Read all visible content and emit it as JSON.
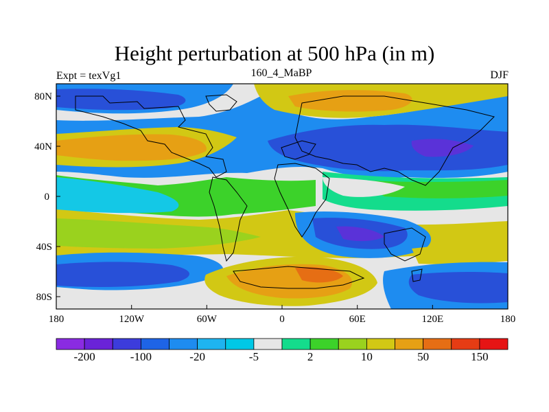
{
  "title": "Height perturbation at 500 hPa (in m)",
  "left_label": "Expt = texVg1",
  "center_label": "160_4_MaBP",
  "right_label": "DJF",
  "lat_ticks": [
    "80N",
    "40N",
    "0",
    "40S",
    "80S"
  ],
  "lon_ticks": [
    "180",
    "120W",
    "60W",
    "0",
    "60E",
    "120E",
    "180"
  ],
  "colorbar": {
    "colors": [
      "#8a2be2",
      "#6a23d8",
      "#3c3cdc",
      "#1e64e6",
      "#1e8cf0",
      "#1eb4f0",
      "#00c8e6",
      "#e6e6e6",
      "#14dc8c",
      "#3cd22a",
      "#9ad21e",
      "#d2c814",
      "#e6a014",
      "#e66e14",
      "#e63c14",
      "#e61414"
    ],
    "labels": [
      "-200",
      "-100",
      "-20",
      "-5",
      "2",
      "10",
      "50",
      "150"
    ]
  },
  "map_palette": {
    "bg": "#e6e6e6",
    "deep_blue": "#2850d8",
    "blue": "#1e8cf0",
    "cyan": "#14c8e6",
    "teal": "#14dc8c",
    "green": "#3cd22a",
    "yellowgreen": "#9ad21e",
    "yellow": "#d2c814",
    "orange": "#e6a014",
    "darkorange": "#e66e14",
    "purple": "#5a32d8"
  }
}
